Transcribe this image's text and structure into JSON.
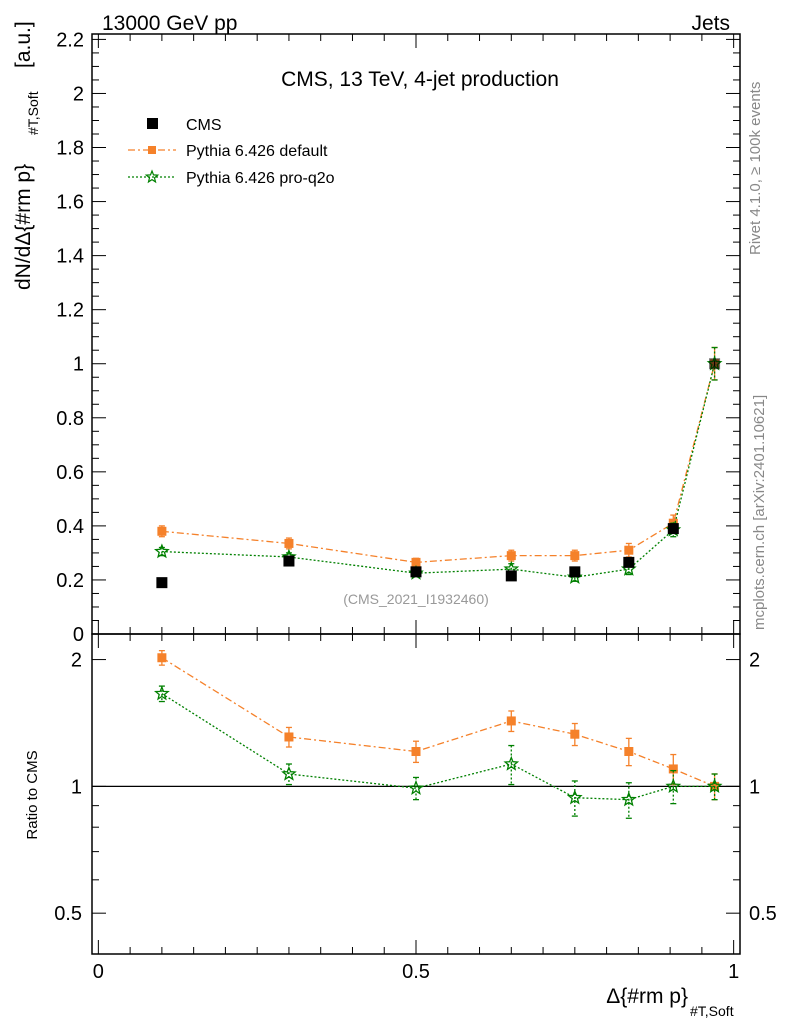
{
  "header": {
    "left": "13000 GeV pp",
    "right": "Jets"
  },
  "side_labels": {
    "rivet": "Rivet 4.1.0, ≥ 100k events",
    "mcplots": "mcplots.cern.ch [arXiv:2401.10621]"
  },
  "chart_data": {
    "type": "scatter",
    "title": "CMS, 13 TeV, 4-jet production",
    "analysis_id": "(CMS_2021_I1932460)",
    "xlabel": "Δ{#rm p}",
    "xlabel_sub": "#T,Soft",
    "ylabel": "dN/dΔ{#rm p}",
    "ylabel_sub": "#T,Soft",
    "ylabel_unit": "[a.u.]",
    "ratio_ylabel": "Ratio to CMS",
    "xlim": [
      -0.01,
      1.01
    ],
    "ylim": [
      0,
      2.22
    ],
    "ratio_ylim": [
      0.4,
      2.3
    ],
    "x_ticks": [
      0,
      0.5,
      1
    ],
    "x_tick_labels": [
      "0",
      "0.5",
      "1"
    ],
    "y_ticks": [
      0,
      0.2,
      0.4,
      0.6,
      0.8,
      1,
      1.2,
      1.4,
      1.6,
      1.8,
      2,
      2.2
    ],
    "y_tick_labels": [
      "0",
      "0.2",
      "0.4",
      "0.6",
      "0.8",
      "1",
      "1.2",
      "1.4",
      "1.6",
      "1.8",
      "2",
      "2.2"
    ],
    "ratio_ticks": [
      0.5,
      1,
      2
    ],
    "ratio_tick_labels": [
      "0.5",
      "1",
      "2"
    ],
    "x": [
      0.1,
      0.3,
      0.5,
      0.65,
      0.75,
      0.835,
      0.905,
      0.97
    ],
    "series": [
      {
        "name": "CMS",
        "color": "#000000",
        "marker": "square",
        "values": [
          0.19,
          0.27,
          0.23,
          0.215,
          0.23,
          0.265,
          0.39,
          1.0
        ],
        "errors": [
          0.005,
          0.005,
          0.005,
          0.005,
          0.005,
          0.005,
          0.005,
          0.01
        ]
      },
      {
        "name": "Pythia 6.426 default",
        "color": "#f5812a",
        "marker": "square",
        "line": "dashdot",
        "values": [
          0.38,
          0.335,
          0.265,
          0.29,
          0.29,
          0.31,
          0.41,
          1.0
        ],
        "errors": [
          0.02,
          0.02,
          0.015,
          0.02,
          0.02,
          0.025,
          0.03,
          0.06
        ],
        "ratio": [
          2.02,
          1.31,
          1.21,
          1.43,
          1.33,
          1.21,
          1.1,
          1.0
        ],
        "ratio_errors": [
          0.08,
          0.07,
          0.07,
          0.08,
          0.08,
          0.09,
          0.09,
          0.07
        ]
      },
      {
        "name": "Pythia 6.426 pro-q2o",
        "color": "#008000",
        "marker": "star",
        "line": "dotted",
        "values": [
          0.305,
          0.285,
          0.225,
          0.24,
          0.21,
          0.24,
          0.385,
          1.0
        ],
        "errors": [
          0.015,
          0.015,
          0.012,
          0.02,
          0.015,
          0.02,
          0.025,
          0.06
        ],
        "ratio": [
          1.66,
          1.07,
          0.99,
          1.13,
          0.94,
          0.93,
          1.0,
          1.0
        ],
        "ratio_errors": [
          0.07,
          0.06,
          0.06,
          0.12,
          0.09,
          0.09,
          0.09,
          0.07
        ]
      }
    ]
  }
}
